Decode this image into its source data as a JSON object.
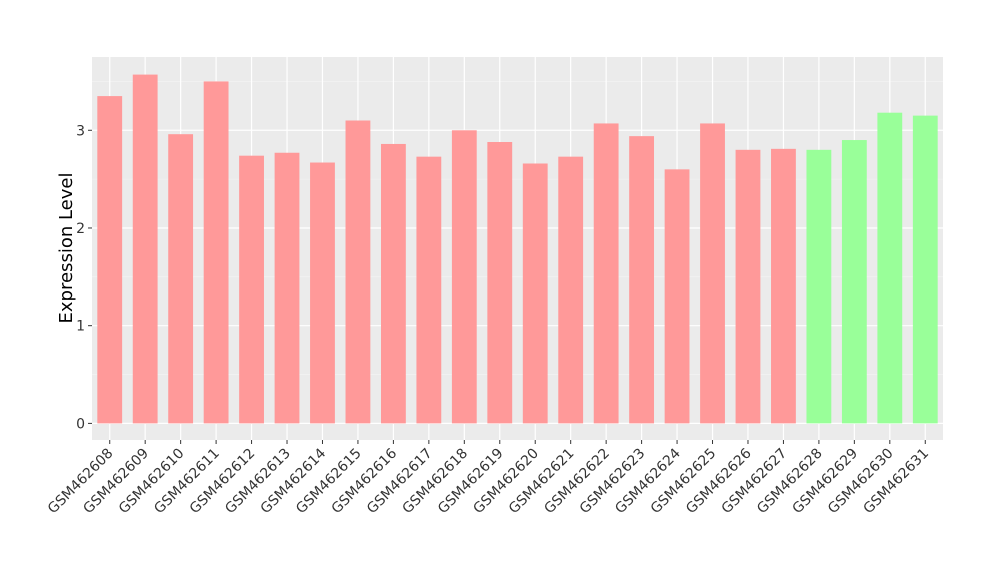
{
  "chart_data": {
    "type": "bar",
    "ylabel": "Expression Level",
    "categories": [
      "GSM462608",
      "GSM462609",
      "GSM462610",
      "GSM462611",
      "GSM462612",
      "GSM462613",
      "GSM462614",
      "GSM462615",
      "GSM462616",
      "GSM462617",
      "GSM462618",
      "GSM462619",
      "GSM462620",
      "GSM462621",
      "GSM462622",
      "GSM462623",
      "GSM462624",
      "GSM462625",
      "GSM462626",
      "GSM462627",
      "GSM462628",
      "GSM462629",
      "GSM462630",
      "GSM462631"
    ],
    "values": [
      3.35,
      3.57,
      2.96,
      3.5,
      2.74,
      2.77,
      2.67,
      3.1,
      2.86,
      2.73,
      3.0,
      2.88,
      2.66,
      2.73,
      3.07,
      2.94,
      2.6,
      3.07,
      2.8,
      2.81,
      2.8,
      2.9,
      3.18,
      3.15
    ],
    "colors": [
      "#ff9999",
      "#ff9999",
      "#ff9999",
      "#ff9999",
      "#ff9999",
      "#ff9999",
      "#ff9999",
      "#ff9999",
      "#ff9999",
      "#ff9999",
      "#ff9999",
      "#ff9999",
      "#ff9999",
      "#ff9999",
      "#ff9999",
      "#ff9999",
      "#ff9999",
      "#ff9999",
      "#ff9999",
      "#ff9999",
      "#99ff99",
      "#99ff99",
      "#99ff99",
      "#99ff99"
    ],
    "ylim": [
      -0.17,
      3.75
    ],
    "yticks": [
      0,
      1,
      2,
      3
    ],
    "minor_yticks": [
      0.5,
      1.5,
      2.5,
      3.5
    ],
    "grid": true
  }
}
